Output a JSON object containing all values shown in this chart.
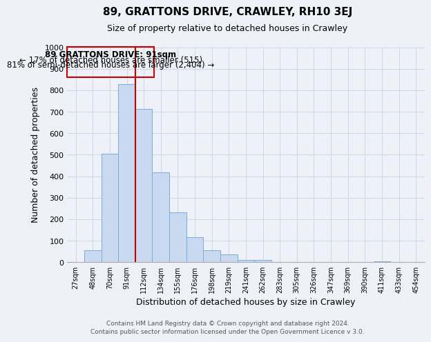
{
  "title": "89, GRATTONS DRIVE, CRAWLEY, RH10 3EJ",
  "subtitle": "Size of property relative to detached houses in Crawley",
  "xlabel": "Distribution of detached houses by size in Crawley",
  "ylabel": "Number of detached properties",
  "bin_labels": [
    "27sqm",
    "48sqm",
    "70sqm",
    "91sqm",
    "112sqm",
    "134sqm",
    "155sqm",
    "176sqm",
    "198sqm",
    "219sqm",
    "241sqm",
    "262sqm",
    "283sqm",
    "305sqm",
    "326sqm",
    "347sqm",
    "369sqm",
    "390sqm",
    "411sqm",
    "433sqm",
    "454sqm"
  ],
  "bar_heights": [
    0,
    57,
    505,
    828,
    712,
    418,
    232,
    118,
    57,
    35,
    12,
    12,
    0,
    0,
    0,
    0,
    0,
    0,
    4,
    0,
    0
  ],
  "bar_color": "#c8d9f0",
  "bar_edge_color": "#7aabdc",
  "vline_x_index": 3,
  "vline_color": "#cc0000",
  "ylim": [
    0,
    1000
  ],
  "yticks": [
    0,
    100,
    200,
    300,
    400,
    500,
    600,
    700,
    800,
    900,
    1000
  ],
  "annotation_title": "89 GRATTONS DRIVE: 91sqm",
  "annotation_line1": "← 17% of detached houses are smaller (515)",
  "annotation_line2": "81% of semi-detached houses are larger (2,404) →",
  "annotation_box_color": "#cc0000",
  "footer_line1": "Contains HM Land Registry data © Crown copyright and database right 2024.",
  "footer_line2": "Contains public sector information licensed under the Open Government Licence v 3.0.",
  "grid_color": "#d0d8e8",
  "bg_color": "#eef2f8"
}
